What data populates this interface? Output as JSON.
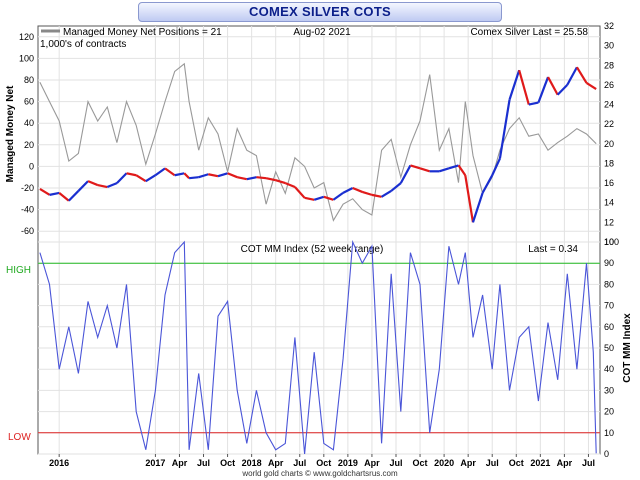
{
  "banner_title": "COMEX SILVER COTS",
  "chart_data": [
    {
      "type": "line",
      "panel": "top",
      "title": "COMEX SILVER COTS",
      "legend_label": "Managed Money Net Positions = 21",
      "units_note": "1,000's of contracts",
      "date_label": "Aug-02  2021",
      "price_label": "Comex Silver Last = 25.58",
      "ylabel_left": "Managed Money Net",
      "ylim_left": [
        -70,
        130
      ],
      "yticks_left": [
        "120",
        "100",
        "80",
        "60",
        "40",
        "20",
        "0",
        "-20",
        "-40",
        "-60"
      ],
      "ylim_right": [
        10,
        32
      ],
      "yticks_right": [
        "32",
        "30",
        "28",
        "26",
        "24",
        "22",
        "20",
        "18",
        "16",
        "14",
        "12",
        "10"
      ],
      "colors": {
        "net_positions": "#999999",
        "up": "#1a2fd0",
        "down": "#e01a1a"
      },
      "x": [
        2015.8,
        2015.9,
        2016.0,
        2016.1,
        2016.2,
        2016.3,
        2016.4,
        2016.5,
        2016.6,
        2016.7,
        2016.8,
        2016.9,
        2017.0,
        2017.1,
        2017.2,
        2017.3,
        2017.35,
        2017.45,
        2017.55,
        2017.65,
        2017.75,
        2017.85,
        2017.95,
        2018.05,
        2018.15,
        2018.25,
        2018.35,
        2018.45,
        2018.55,
        2018.65,
        2018.75,
        2018.85,
        2018.95,
        2019.05,
        2019.15,
        2019.25,
        2019.35,
        2019.45,
        2019.55,
        2019.65,
        2019.75,
        2019.85,
        2019.95,
        2020.05,
        2020.15,
        2020.22,
        2020.3,
        2020.4,
        2020.5,
        2020.58,
        2020.68,
        2020.78,
        2020.88,
        2020.98,
        2021.08,
        2021.18,
        2021.28,
        2021.38,
        2021.48,
        2021.58
      ],
      "series": [
        {
          "name": "Managed Money Net Positions",
          "values": [
            78,
            60,
            42,
            5,
            12,
            60,
            42,
            55,
            22,
            60,
            38,
            2,
            30,
            60,
            88,
            95,
            60,
            15,
            45,
            30,
            -5,
            35,
            15,
            10,
            -35,
            -5,
            -25,
            8,
            0,
            -20,
            -15,
            -50,
            -35,
            -30,
            -40,
            -45,
            15,
            25,
            -10,
            20,
            42,
            85,
            15,
            35,
            -15,
            60,
            10,
            -25,
            -10,
            15,
            35,
            45,
            28,
            30,
            15,
            22,
            28,
            35,
            30,
            21
          ]
        },
        {
          "name": "Comex Silver",
          "values": [
            15.4,
            14.8,
            15.0,
            14.2,
            15.2,
            16.2,
            15.8,
            15.6,
            16.0,
            17.0,
            16.8,
            16.2,
            16.8,
            17.5,
            16.8,
            17.0,
            16.5,
            16.6,
            16.9,
            16.7,
            17.0,
            16.6,
            16.4,
            16.6,
            16.5,
            16.3,
            16.0,
            15.6,
            14.5,
            14.3,
            14.6,
            14.3,
            15.0,
            15.5,
            15.1,
            14.8,
            14.6,
            15.2,
            16.0,
            17.8,
            17.5,
            17.2,
            17.2,
            17.5,
            17.8,
            16.8,
            12.0,
            15.0,
            16.8,
            18.5,
            24.5,
            27.5,
            24.0,
            24.2,
            26.8,
            25.0,
            26.0,
            27.8,
            26.2,
            25.58
          ]
        }
      ]
    },
    {
      "type": "line",
      "panel": "bottom",
      "title": "COT MM Index  (52 week range)",
      "last_label": "Last = 0.34",
      "ylabel_right": "COT MM Index",
      "ylim": [
        0,
        100
      ],
      "yticks": [
        "100",
        "90",
        "80",
        "70",
        "60",
        "50",
        "40",
        "30",
        "20",
        "10",
        "0"
      ],
      "high_label": "HIGH",
      "low_label": "LOW",
      "high_level": 90,
      "low_level": 10,
      "x_tick_labels": [
        "2016",
        "2017",
        "Apr",
        "Jul",
        "Oct",
        "2018",
        "Apr",
        "Jul",
        "Oct",
        "2019",
        "Apr",
        "Jul",
        "Oct",
        "2020",
        "Apr",
        "Jul",
        "Oct",
        "2021",
        "Apr",
        "Jul"
      ],
      "x_tick_values": [
        2016.0,
        2017.0,
        2017.25,
        2017.5,
        2017.75,
        2018.0,
        2018.25,
        2018.5,
        2018.75,
        2019.0,
        2019.25,
        2019.5,
        2019.75,
        2020.0,
        2020.25,
        2020.5,
        2020.75,
        2021.0,
        2021.25,
        2021.5
      ],
      "colors": {
        "index": "#4a55d8",
        "high": "#22bb22",
        "low": "#dd2222"
      },
      "x": [
        2015.8,
        2015.9,
        2016.0,
        2016.1,
        2016.2,
        2016.3,
        2016.4,
        2016.5,
        2016.6,
        2016.7,
        2016.8,
        2016.9,
        2017.0,
        2017.1,
        2017.2,
        2017.3,
        2017.35,
        2017.45,
        2017.55,
        2017.65,
        2017.75,
        2017.85,
        2017.95,
        2018.05,
        2018.15,
        2018.25,
        2018.35,
        2018.45,
        2018.55,
        2018.65,
        2018.75,
        2018.85,
        2018.95,
        2019.05,
        2019.15,
        2019.25,
        2019.35,
        2019.45,
        2019.55,
        2019.65,
        2019.75,
        2019.85,
        2019.95,
        2020.05,
        2020.15,
        2020.22,
        2020.3,
        2020.4,
        2020.5,
        2020.58,
        2020.68,
        2020.78,
        2020.88,
        2020.98,
        2021.08,
        2021.18,
        2021.28,
        2021.38,
        2021.48,
        2021.55,
        2021.58
      ],
      "values": [
        95,
        80,
        40,
        60,
        38,
        72,
        55,
        70,
        50,
        80,
        20,
        2,
        30,
        75,
        95,
        100,
        2,
        38,
        2,
        65,
        72,
        30,
        5,
        30,
        10,
        2,
        5,
        55,
        0,
        48,
        5,
        2,
        45,
        100,
        90,
        98,
        5,
        85,
        20,
        95,
        80,
        10,
        40,
        98,
        80,
        95,
        55,
        75,
        40,
        80,
        30,
        55,
        60,
        25,
        62,
        35,
        85,
        40,
        90,
        48,
        0.34
      ]
    }
  ],
  "footer": "world gold charts © www.goldchartsrus.com"
}
